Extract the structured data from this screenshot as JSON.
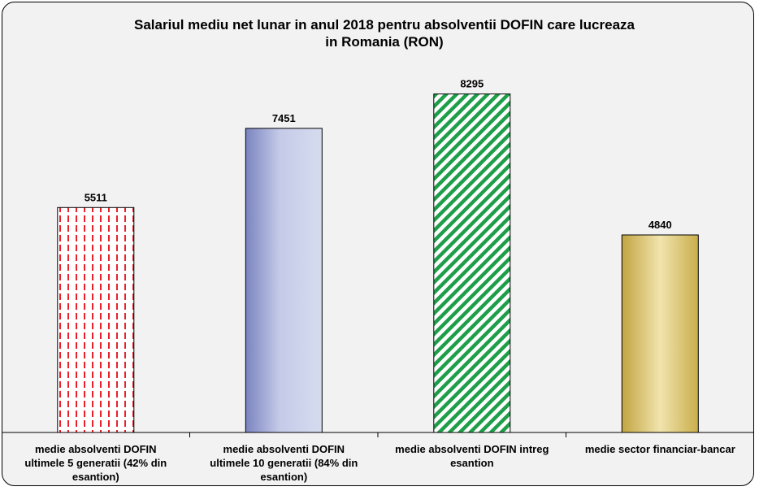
{
  "chart_data": {
    "type": "bar",
    "title": "Salariul mediu net lunar in anul 2018 pentru absolventii  DOFIN care lucreaza in Romania (RON)",
    "title_lines": [
      "Salariul mediu net lunar in anul 2018 pentru absolventii  DOFIN care lucreaza",
      "in Romania (RON)"
    ],
    "categories": [
      "medie absolventi DOFIN ultimele 5 generatii (42% din esantion)",
      "medie absolventi DOFIN ultimele 10 generatii (84% din esantion)",
      "medie absolventi DOFIN intreg esantion",
      "medie sector financiar-bancar"
    ],
    "category_label_lines": [
      [
        "medie absolventi DOFIN",
        "ultimele 5 generatii (42% din",
        "esantion)"
      ],
      [
        "medie absolventi DOFIN",
        "ultimele 10 generatii (84% din",
        "esantion)"
      ],
      [
        "medie absolventi DOFIN intreg",
        "esantion"
      ],
      [
        "medie sector financiar-bancar"
      ]
    ],
    "values": [
      5511,
      7451,
      8295,
      4840
    ],
    "value_labels": [
      "5511",
      "7451",
      "8295",
      "4840"
    ],
    "bar_styles": [
      "red-dashed-pattern",
      "blue-gradient",
      "green-diagonal-stripes",
      "gold-gradient"
    ],
    "colors": [
      "#e8212b",
      "#7b84c0",
      "#1f9e4a",
      "#c9b04a"
    ],
    "ylim": [
      0,
      9800
    ],
    "xlabel": "",
    "ylabel": "",
    "grid": false,
    "legend": "none"
  }
}
